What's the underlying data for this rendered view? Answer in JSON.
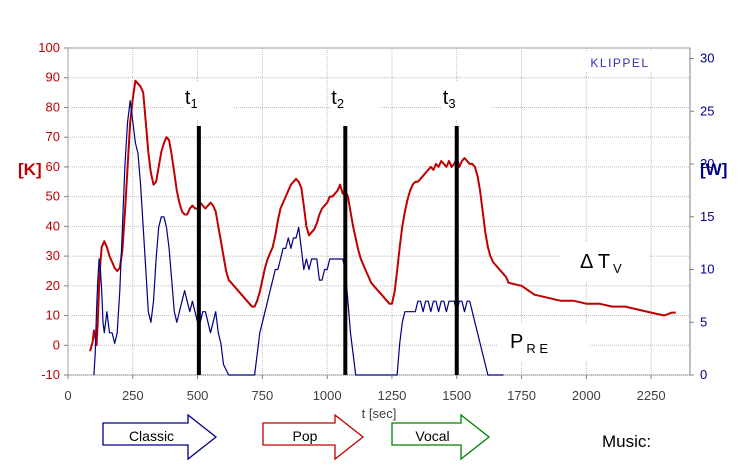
{
  "chart_data": {
    "type": "line",
    "brand": "KLIPPEL",
    "xlabel": "t [sec]",
    "x_ticks": [
      0,
      250,
      500,
      750,
      1000,
      1250,
      1500,
      1750,
      2000,
      2250
    ],
    "xlim": [
      0,
      2400
    ],
    "left_axis": {
      "label": "[K]",
      "color": "#c00000",
      "ylim": [
        -10,
        100
      ],
      "ticks": [
        -10,
        0,
        10,
        20,
        30,
        40,
        50,
        60,
        70,
        80,
        90,
        100
      ]
    },
    "right_axis": {
      "label": "[W]",
      "color": "#000080",
      "ylim": [
        0,
        31
      ],
      "ticks": [
        0,
        5,
        10,
        15,
        20,
        25,
        30
      ]
    },
    "grid": true,
    "series": [
      {
        "name": "Δ T V",
        "axis": "left",
        "color": "#c00000",
        "points": [
          [
            85,
            -2
          ],
          [
            95,
            1
          ],
          [
            100,
            5
          ],
          [
            105,
            3
          ],
          [
            110,
            0
          ],
          [
            115,
            8
          ],
          [
            120,
            20
          ],
          [
            125,
            28
          ],
          [
            130,
            33
          ],
          [
            140,
            35
          ],
          [
            150,
            33
          ],
          [
            160,
            30
          ],
          [
            170,
            28
          ],
          [
            180,
            26
          ],
          [
            190,
            25
          ],
          [
            200,
            26
          ],
          [
            210,
            32
          ],
          [
            220,
            45
          ],
          [
            230,
            60
          ],
          [
            240,
            75
          ],
          [
            250,
            83
          ],
          [
            260,
            89
          ],
          [
            270,
            88
          ],
          [
            280,
            87
          ],
          [
            290,
            85
          ],
          [
            300,
            75
          ],
          [
            310,
            65
          ],
          [
            320,
            58
          ],
          [
            330,
            54
          ],
          [
            340,
            55
          ],
          [
            350,
            60
          ],
          [
            360,
            65
          ],
          [
            370,
            68
          ],
          [
            380,
            70
          ],
          [
            390,
            69
          ],
          [
            400,
            64
          ],
          [
            410,
            58
          ],
          [
            420,
            52
          ],
          [
            430,
            48
          ],
          [
            440,
            45
          ],
          [
            450,
            44
          ],
          [
            460,
            44
          ],
          [
            470,
            46
          ],
          [
            480,
            47
          ],
          [
            490,
            46
          ],
          [
            500,
            46
          ],
          [
            510,
            48
          ],
          [
            520,
            47
          ],
          [
            530,
            46
          ],
          [
            540,
            47
          ],
          [
            550,
            48
          ],
          [
            560,
            47
          ],
          [
            570,
            45
          ],
          [
            580,
            40
          ],
          [
            590,
            35
          ],
          [
            600,
            30
          ],
          [
            610,
            25
          ],
          [
            620,
            22
          ],
          [
            630,
            21
          ],
          [
            640,
            20
          ],
          [
            650,
            19
          ],
          [
            660,
            18
          ],
          [
            670,
            17
          ],
          [
            680,
            16
          ],
          [
            690,
            15
          ],
          [
            700,
            14
          ],
          [
            710,
            13
          ],
          [
            720,
            13
          ],
          [
            730,
            15
          ],
          [
            740,
            18
          ],
          [
            750,
            22
          ],
          [
            760,
            26
          ],
          [
            770,
            29
          ],
          [
            780,
            31
          ],
          [
            790,
            33
          ],
          [
            800,
            37
          ],
          [
            810,
            42
          ],
          [
            820,
            46
          ],
          [
            830,
            48
          ],
          [
            840,
            50
          ],
          [
            850,
            52
          ],
          [
            860,
            54
          ],
          [
            870,
            55
          ],
          [
            880,
            56
          ],
          [
            890,
            55
          ],
          [
            900,
            53
          ],
          [
            910,
            47
          ],
          [
            920,
            40
          ],
          [
            930,
            37
          ],
          [
            940,
            38
          ],
          [
            950,
            39
          ],
          [
            960,
            41
          ],
          [
            970,
            44
          ],
          [
            980,
            46
          ],
          [
            990,
            47
          ],
          [
            1000,
            48
          ],
          [
            1010,
            50
          ],
          [
            1020,
            50
          ],
          [
            1030,
            51
          ],
          [
            1040,
            52
          ],
          [
            1050,
            54
          ],
          [
            1060,
            51
          ],
          [
            1070,
            52
          ],
          [
            1080,
            50
          ],
          [
            1090,
            45
          ],
          [
            1100,
            40
          ],
          [
            1110,
            36
          ],
          [
            1120,
            32
          ],
          [
            1130,
            29
          ],
          [
            1140,
            27
          ],
          [
            1150,
            25
          ],
          [
            1160,
            23
          ],
          [
            1170,
            21
          ],
          [
            1180,
            20
          ],
          [
            1190,
            19
          ],
          [
            1200,
            18
          ],
          [
            1210,
            17
          ],
          [
            1220,
            16
          ],
          [
            1230,
            15
          ],
          [
            1240,
            14
          ],
          [
            1250,
            14
          ],
          [
            1260,
            18
          ],
          [
            1270,
            25
          ],
          [
            1280,
            33
          ],
          [
            1290,
            40
          ],
          [
            1300,
            45
          ],
          [
            1310,
            49
          ],
          [
            1320,
            52
          ],
          [
            1330,
            54
          ],
          [
            1340,
            55
          ],
          [
            1350,
            55
          ],
          [
            1360,
            56
          ],
          [
            1370,
            57
          ],
          [
            1380,
            58
          ],
          [
            1390,
            59
          ],
          [
            1400,
            60
          ],
          [
            1410,
            59
          ],
          [
            1420,
            61
          ],
          [
            1430,
            60
          ],
          [
            1440,
            62
          ],
          [
            1450,
            61
          ],
          [
            1460,
            60
          ],
          [
            1470,
            62
          ],
          [
            1480,
            60
          ],
          [
            1490,
            61
          ],
          [
            1500,
            63
          ],
          [
            1510,
            60
          ],
          [
            1520,
            62
          ],
          [
            1530,
            63
          ],
          [
            1540,
            62
          ],
          [
            1550,
            61
          ],
          [
            1560,
            61
          ],
          [
            1570,
            60
          ],
          [
            1580,
            57
          ],
          [
            1590,
            52
          ],
          [
            1600,
            45
          ],
          [
            1610,
            38
          ],
          [
            1620,
            33
          ],
          [
            1630,
            30
          ],
          [
            1640,
            28
          ],
          [
            1650,
            27
          ],
          [
            1660,
            26
          ],
          [
            1670,
            25
          ],
          [
            1680,
            24
          ],
          [
            1690,
            23
          ],
          [
            1700,
            21
          ],
          [
            1750,
            20
          ],
          [
            1800,
            17
          ],
          [
            1850,
            16
          ],
          [
            1900,
            15
          ],
          [
            1950,
            15
          ],
          [
            2000,
            14
          ],
          [
            2050,
            14
          ],
          [
            2100,
            13
          ],
          [
            2150,
            13
          ],
          [
            2200,
            12
          ],
          [
            2250,
            11
          ],
          [
            2300,
            10
          ],
          [
            2330,
            11
          ],
          [
            2345,
            11
          ]
        ]
      },
      {
        "name": "P R E",
        "axis": "right",
        "color": "#000080",
        "points": [
          [
            100,
            0
          ],
          [
            105,
            2
          ],
          [
            110,
            6
          ],
          [
            115,
            9
          ],
          [
            120,
            11
          ],
          [
            125,
            10
          ],
          [
            130,
            8
          ],
          [
            135,
            5
          ],
          [
            140,
            4
          ],
          [
            145,
            5
          ],
          [
            150,
            6
          ],
          [
            155,
            5
          ],
          [
            160,
            4
          ],
          [
            170,
            4
          ],
          [
            180,
            3
          ],
          [
            190,
            4
          ],
          [
            200,
            8
          ],
          [
            210,
            14
          ],
          [
            220,
            20
          ],
          [
            230,
            24
          ],
          [
            240,
            26
          ],
          [
            250,
            24
          ],
          [
            260,
            22
          ],
          [
            270,
            21
          ],
          [
            280,
            18
          ],
          [
            290,
            14
          ],
          [
            300,
            10
          ],
          [
            310,
            6
          ],
          [
            320,
            5
          ],
          [
            330,
            7
          ],
          [
            340,
            11
          ],
          [
            350,
            14
          ],
          [
            360,
            15
          ],
          [
            370,
            15
          ],
          [
            380,
            14
          ],
          [
            390,
            12
          ],
          [
            400,
            9
          ],
          [
            410,
            6
          ],
          [
            420,
            5
          ],
          [
            430,
            6
          ],
          [
            440,
            7
          ],
          [
            450,
            8
          ],
          [
            460,
            7
          ],
          [
            470,
            6
          ],
          [
            480,
            7
          ],
          [
            490,
            6
          ],
          [
            500,
            5
          ],
          [
            510,
            5
          ],
          [
            520,
            6
          ],
          [
            530,
            6
          ],
          [
            540,
            5
          ],
          [
            550,
            4
          ],
          [
            560,
            5
          ],
          [
            570,
            6
          ],
          [
            580,
            4
          ],
          [
            590,
            3
          ],
          [
            600,
            1
          ],
          [
            620,
            0
          ],
          [
            700,
            0
          ],
          [
            720,
            0
          ],
          [
            730,
            2
          ],
          [
            740,
            4
          ],
          [
            750,
            5
          ],
          [
            760,
            6
          ],
          [
            770,
            7
          ],
          [
            780,
            8
          ],
          [
            790,
            9
          ],
          [
            800,
            10
          ],
          [
            810,
            10
          ],
          [
            820,
            11
          ],
          [
            830,
            12
          ],
          [
            840,
            12
          ],
          [
            850,
            13
          ],
          [
            860,
            12
          ],
          [
            870,
            13
          ],
          [
            880,
            13
          ],
          [
            890,
            14
          ],
          [
            900,
            12
          ],
          [
            910,
            10
          ],
          [
            920,
            11
          ],
          [
            930,
            10
          ],
          [
            940,
            11
          ],
          [
            950,
            11
          ],
          [
            960,
            11
          ],
          [
            970,
            9
          ],
          [
            980,
            9
          ],
          [
            990,
            10
          ],
          [
            1000,
            10
          ],
          [
            1010,
            11
          ],
          [
            1020,
            11
          ],
          [
            1030,
            11
          ],
          [
            1040,
            11
          ],
          [
            1050,
            11
          ],
          [
            1060,
            11
          ],
          [
            1070,
            10
          ],
          [
            1080,
            7
          ],
          [
            1090,
            4
          ],
          [
            1100,
            2
          ],
          [
            1110,
            0
          ],
          [
            1270,
            0
          ],
          [
            1280,
            3
          ],
          [
            1290,
            5
          ],
          [
            1300,
            6
          ],
          [
            1310,
            6
          ],
          [
            1320,
            6
          ],
          [
            1330,
            6
          ],
          [
            1340,
            6
          ],
          [
            1350,
            7
          ],
          [
            1360,
            7
          ],
          [
            1370,
            6
          ],
          [
            1380,
            7
          ],
          [
            1390,
            7
          ],
          [
            1400,
            6
          ],
          [
            1410,
            7
          ],
          [
            1420,
            7
          ],
          [
            1430,
            6
          ],
          [
            1440,
            7
          ],
          [
            1450,
            7
          ],
          [
            1460,
            6
          ],
          [
            1470,
            7
          ],
          [
            1480,
            7
          ],
          [
            1490,
            7
          ],
          [
            1500,
            6
          ],
          [
            1510,
            7
          ],
          [
            1520,
            7
          ],
          [
            1530,
            6
          ],
          [
            1540,
            7
          ],
          [
            1550,
            7
          ],
          [
            1560,
            6
          ],
          [
            1570,
            5
          ],
          [
            1580,
            4
          ],
          [
            1590,
            3
          ],
          [
            1600,
            2
          ],
          [
            1610,
            1
          ],
          [
            1620,
            0
          ],
          [
            1680,
            0
          ]
        ]
      }
    ],
    "markers": [
      {
        "label": "t",
        "sub": "1",
        "x": 505
      },
      {
        "label": "t",
        "sub": "2",
        "x": 1070
      },
      {
        "label": "t",
        "sub": "3",
        "x": 1500
      }
    ],
    "annotations": [
      {
        "main": "Δ T",
        "sub": "V"
      },
      {
        "main": "P",
        "sub": "R E"
      }
    ]
  },
  "music": {
    "label": "Music:",
    "genres": [
      {
        "label": "Classic",
        "color": "#000080"
      },
      {
        "label": "Pop",
        "color": "#c00000"
      },
      {
        "label": "Vocal",
        "color": "#008000"
      }
    ]
  }
}
